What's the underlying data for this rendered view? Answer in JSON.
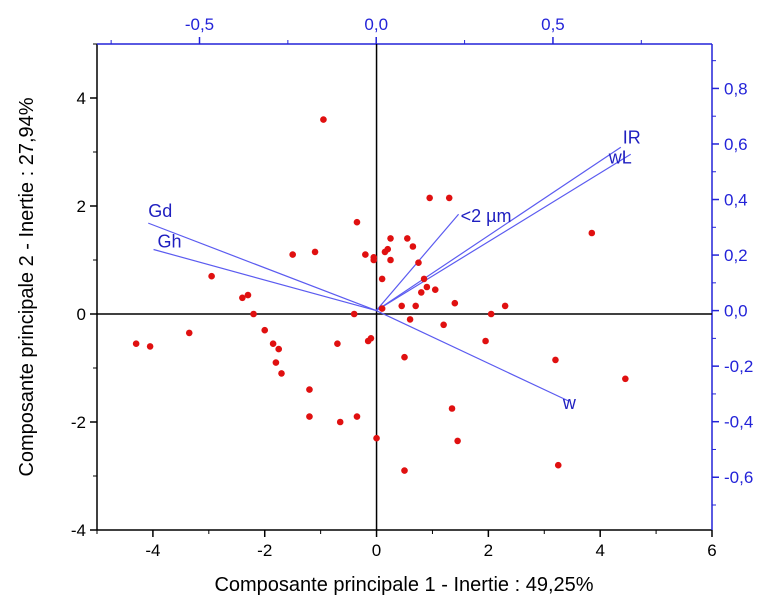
{
  "chart_data": {
    "type": "scatter",
    "title": "",
    "xlabel": "Composante principale 1 - Inertie : 49,25%",
    "ylabel": "Composante principale 2 - Inertie : 27,94%",
    "xlim": [
      -5,
      6
    ],
    "ylim": [
      -4,
      5
    ],
    "x_ticks": [
      -4,
      -2,
      0,
      2,
      4,
      6
    ],
    "y_ticks": [
      -4,
      -2,
      0,
      2,
      4
    ],
    "x_tick_labels": [
      "-4",
      "-2",
      "0",
      "2",
      "4",
      "6"
    ],
    "y_tick_labels": [
      "-4",
      "-2",
      "0",
      "2",
      "4"
    ],
    "top_axis": {
      "lim": [
        -0.79,
        0.95
      ],
      "ticks": [
        -0.5,
        0.0,
        0.5
      ],
      "tick_labels": [
        "-0,5",
        "0,0",
        "0,5"
      ],
      "color": "#2323d8"
    },
    "right_axis": {
      "lim": [
        -0.79,
        0.96
      ],
      "ticks": [
        -0.6,
        -0.4,
        -0.2,
        0.0,
        0.2,
        0.4,
        0.6,
        0.8
      ],
      "tick_labels": [
        "-0,6",
        "-0,4",
        "-0,2",
        "0,0",
        "0,2",
        "0,4",
        "0,6",
        "0,8"
      ],
      "color": "#2323d8"
    },
    "points": [
      [
        -4.3,
        -0.55
      ],
      [
        -4.05,
        -0.6
      ],
      [
        -3.35,
        -0.35
      ],
      [
        -2.95,
        0.7
      ],
      [
        -2.4,
        0.3
      ],
      [
        -2.3,
        0.35
      ],
      [
        -2.2,
        0.0
      ],
      [
        -2.0,
        -0.3
      ],
      [
        -1.85,
        -0.55
      ],
      [
        -1.8,
        -0.9
      ],
      [
        -1.75,
        -0.65
      ],
      [
        -1.7,
        -1.1
      ],
      [
        -1.5,
        1.1
      ],
      [
        -1.2,
        -1.4
      ],
      [
        -1.2,
        -1.9
      ],
      [
        -1.1,
        1.15
      ],
      [
        -0.95,
        3.6
      ],
      [
        -0.7,
        -0.55
      ],
      [
        -0.65,
        -2.0
      ],
      [
        -0.4,
        0.0
      ],
      [
        -0.35,
        1.7
      ],
      [
        -0.35,
        -1.9
      ],
      [
        -0.2,
        1.1
      ],
      [
        -0.15,
        -0.5
      ],
      [
        -0.1,
        -0.45
      ],
      [
        -0.05,
        1.05
      ],
      [
        -0.05,
        1.0
      ],
      [
        0.0,
        -2.3
      ],
      [
        0.1,
        0.1
      ],
      [
        0.1,
        0.65
      ],
      [
        0.15,
        1.15
      ],
      [
        0.2,
        1.2
      ],
      [
        0.25,
        1.0
      ],
      [
        0.25,
        1.4
      ],
      [
        0.45,
        0.15
      ],
      [
        0.5,
        -0.8
      ],
      [
        0.5,
        -2.9
      ],
      [
        0.55,
        1.4
      ],
      [
        0.6,
        -0.1
      ],
      [
        0.65,
        1.25
      ],
      [
        0.7,
        0.15
      ],
      [
        0.75,
        0.95
      ],
      [
        0.8,
        0.4
      ],
      [
        0.85,
        0.65
      ],
      [
        0.9,
        0.5
      ],
      [
        0.95,
        2.15
      ],
      [
        1.05,
        0.45
      ],
      [
        1.2,
        -0.2
      ],
      [
        1.3,
        2.15
      ],
      [
        1.35,
        -1.75
      ],
      [
        1.4,
        0.2
      ],
      [
        1.45,
        -2.35
      ],
      [
        1.95,
        -0.5
      ],
      [
        2.05,
        0.0
      ],
      [
        2.3,
        0.15
      ],
      [
        3.2,
        -0.85
      ],
      [
        3.25,
        -2.8
      ],
      [
        3.85,
        1.5
      ],
      [
        4.45,
        -1.2
      ]
    ],
    "vectors": [
      {
        "label": "IR",
        "x": 0.692,
        "y": 0.588
      },
      {
        "label": "wL",
        "x": 0.72,
        "y": 0.563
      },
      {
        "label": "<2 µm",
        "x": 0.233,
        "y": 0.347
      },
      {
        "label": "Gd",
        "x": -0.645,
        "y": 0.315
      },
      {
        "label": "Gh",
        "x": -0.63,
        "y": 0.22
      },
      {
        "label": "w",
        "x": 0.545,
        "y": -0.326
      }
    ],
    "grid": false,
    "legend": "none",
    "colors": {
      "points": "#e01010",
      "vectors": "#5b5bf0",
      "secondary_axes": "#2323d8",
      "primary_axes": "#000000"
    }
  }
}
